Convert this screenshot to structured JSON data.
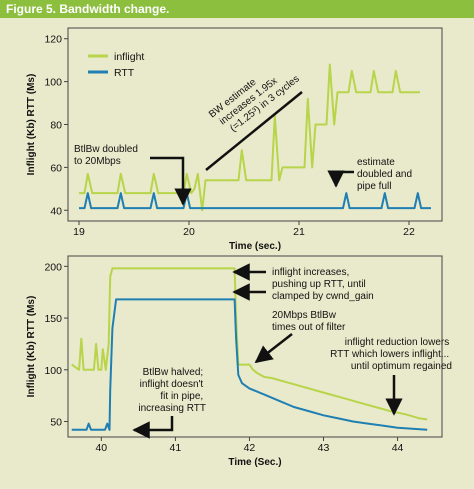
{
  "figure_title": "Figure 5.  Bandwidth change.",
  "colors": {
    "inflight": "#b8d44a",
    "rtt": "#1f7fb3",
    "background": "#e9eacb",
    "header": "#8dbf3f"
  },
  "chart_data": [
    {
      "type": "line",
      "xlabel": "Time (sec.)",
      "ylabel": "Inflight (Kb) RTT (Ms)",
      "xlim": [
        18.9,
        22.3
      ],
      "ylim": [
        35,
        125
      ],
      "xticks": [
        "19",
        "20",
        "21",
        "22"
      ],
      "yticks": [
        "40",
        "60",
        "80",
        "100",
        "120"
      ],
      "grid": false,
      "legend_position": "top-left",
      "series": [
        {
          "name": "inflight",
          "x": [
            19.0,
            19.05,
            19.08,
            19.12,
            19.15,
            19.35,
            19.38,
            19.42,
            19.45,
            19.65,
            19.68,
            19.72,
            19.75,
            19.95,
            19.98,
            20.02,
            20.05,
            20.08,
            20.12,
            20.15,
            20.18,
            20.45,
            20.48,
            20.52,
            20.55,
            20.75,
            20.78,
            20.82,
            20.85,
            21.05,
            21.08,
            21.12,
            21.15,
            21.25,
            21.28,
            21.32,
            21.35,
            21.45,
            21.48,
            21.52,
            21.55,
            21.65,
            21.68,
            21.72,
            21.75,
            21.85,
            21.88,
            21.92,
            21.95,
            22.1
          ],
          "y": [
            48,
            48,
            57,
            48,
            48,
            48,
            57,
            48,
            48,
            48,
            57,
            48,
            48,
            48,
            57,
            48,
            50,
            57,
            40,
            54,
            54,
            54,
            68,
            54,
            54,
            54,
            84,
            54,
            60,
            60,
            92,
            60,
            80,
            80,
            108,
            80,
            95,
            95,
            105,
            95,
            95,
            95,
            105,
            95,
            95,
            95,
            105,
            95,
            95,
            95
          ]
        },
        {
          "name": "RTT",
          "x": [
            19.0,
            19.05,
            19.08,
            19.11,
            19.35,
            19.38,
            19.41,
            19.65,
            19.68,
            19.71,
            19.95,
            19.98,
            20.01,
            21.4,
            21.43,
            21.46,
            21.75,
            21.78,
            21.81,
            22.05,
            22.08,
            22.11,
            22.2
          ],
          "y": [
            41,
            41,
            48,
            41,
            41,
            48,
            41,
            41,
            48,
            41,
            41,
            48,
            41,
            41,
            48,
            41,
            41,
            48,
            41,
            41,
            48,
            41,
            41
          ]
        }
      ],
      "annotations": [
        {
          "lines": [
            "BtlBw doubled",
            "to 20Mbps"
          ]
        },
        {
          "lines": [
            "BW estimate",
            "increases 1.95x",
            "(=1.25³) in 3 cycles"
          ]
        },
        {
          "lines": [
            "estimate",
            "doubled and",
            "pipe full"
          ]
        }
      ]
    },
    {
      "type": "line",
      "xlabel": "Time (Sec.)",
      "ylabel": "Inflight (Kb) RTT (Ms)",
      "xlim": [
        39.55,
        44.6
      ],
      "ylim": [
        35,
        210
      ],
      "xticks": [
        "40",
        "41",
        "42",
        "43",
        "44"
      ],
      "yticks": [
        "50",
        "100",
        "150",
        "200"
      ],
      "grid": false,
      "series": [
        {
          "name": "inflight",
          "x": [
            39.6,
            39.7,
            39.73,
            39.76,
            39.9,
            39.93,
            39.96,
            40.0,
            40.02,
            40.06,
            40.1,
            40.12,
            40.15,
            41.8,
            41.82,
            41.85,
            41.9,
            42.0,
            42.05,
            42.1,
            42.2,
            42.3,
            42.5,
            42.7,
            42.9,
            43.1,
            43.3,
            43.5,
            43.7,
            43.9,
            44.1,
            44.3,
            44.4
          ],
          "y": [
            105,
            100,
            130,
            100,
            100,
            125,
            100,
            100,
            120,
            100,
            125,
            190,
            198,
            198,
            150,
            105,
            105,
            105,
            100,
            97,
            93,
            92,
            88,
            84,
            80,
            76,
            72,
            68,
            64,
            60,
            57,
            53,
            52
          ]
        },
        {
          "name": "RTT",
          "x": [
            39.6,
            39.8,
            39.83,
            39.86,
            40.05,
            40.08,
            40.11,
            40.12,
            40.15,
            40.2,
            41.8,
            41.82,
            41.85,
            41.9,
            42.0,
            42.2,
            42.4,
            42.6,
            42.8,
            43.0,
            43.2,
            43.4,
            43.6,
            43.8,
            44.0,
            44.2,
            44.4
          ],
          "y": [
            42,
            42,
            48,
            42,
            42,
            48,
            42,
            80,
            140,
            168,
            168,
            130,
            95,
            87,
            82,
            76,
            70,
            64,
            60,
            56,
            53,
            50,
            48,
            46,
            44,
            43,
            42
          ]
        }
      ],
      "annotations": [
        {
          "lines": [
            "inflight increases,",
            "pushing up RTT, until",
            "clamped by cwnd_gain"
          ]
        },
        {
          "lines": [
            "20Mbps BtlBw",
            "times out of filter"
          ]
        },
        {
          "lines": [
            "inflight reduction lowers",
            "RTT which lowers inflight...",
            "until optimum regained"
          ]
        },
        {
          "lines": [
            "BtlBw halved;",
            "inflight doesn't",
            "fit in pipe,",
            "increasing RTT"
          ]
        }
      ]
    }
  ]
}
